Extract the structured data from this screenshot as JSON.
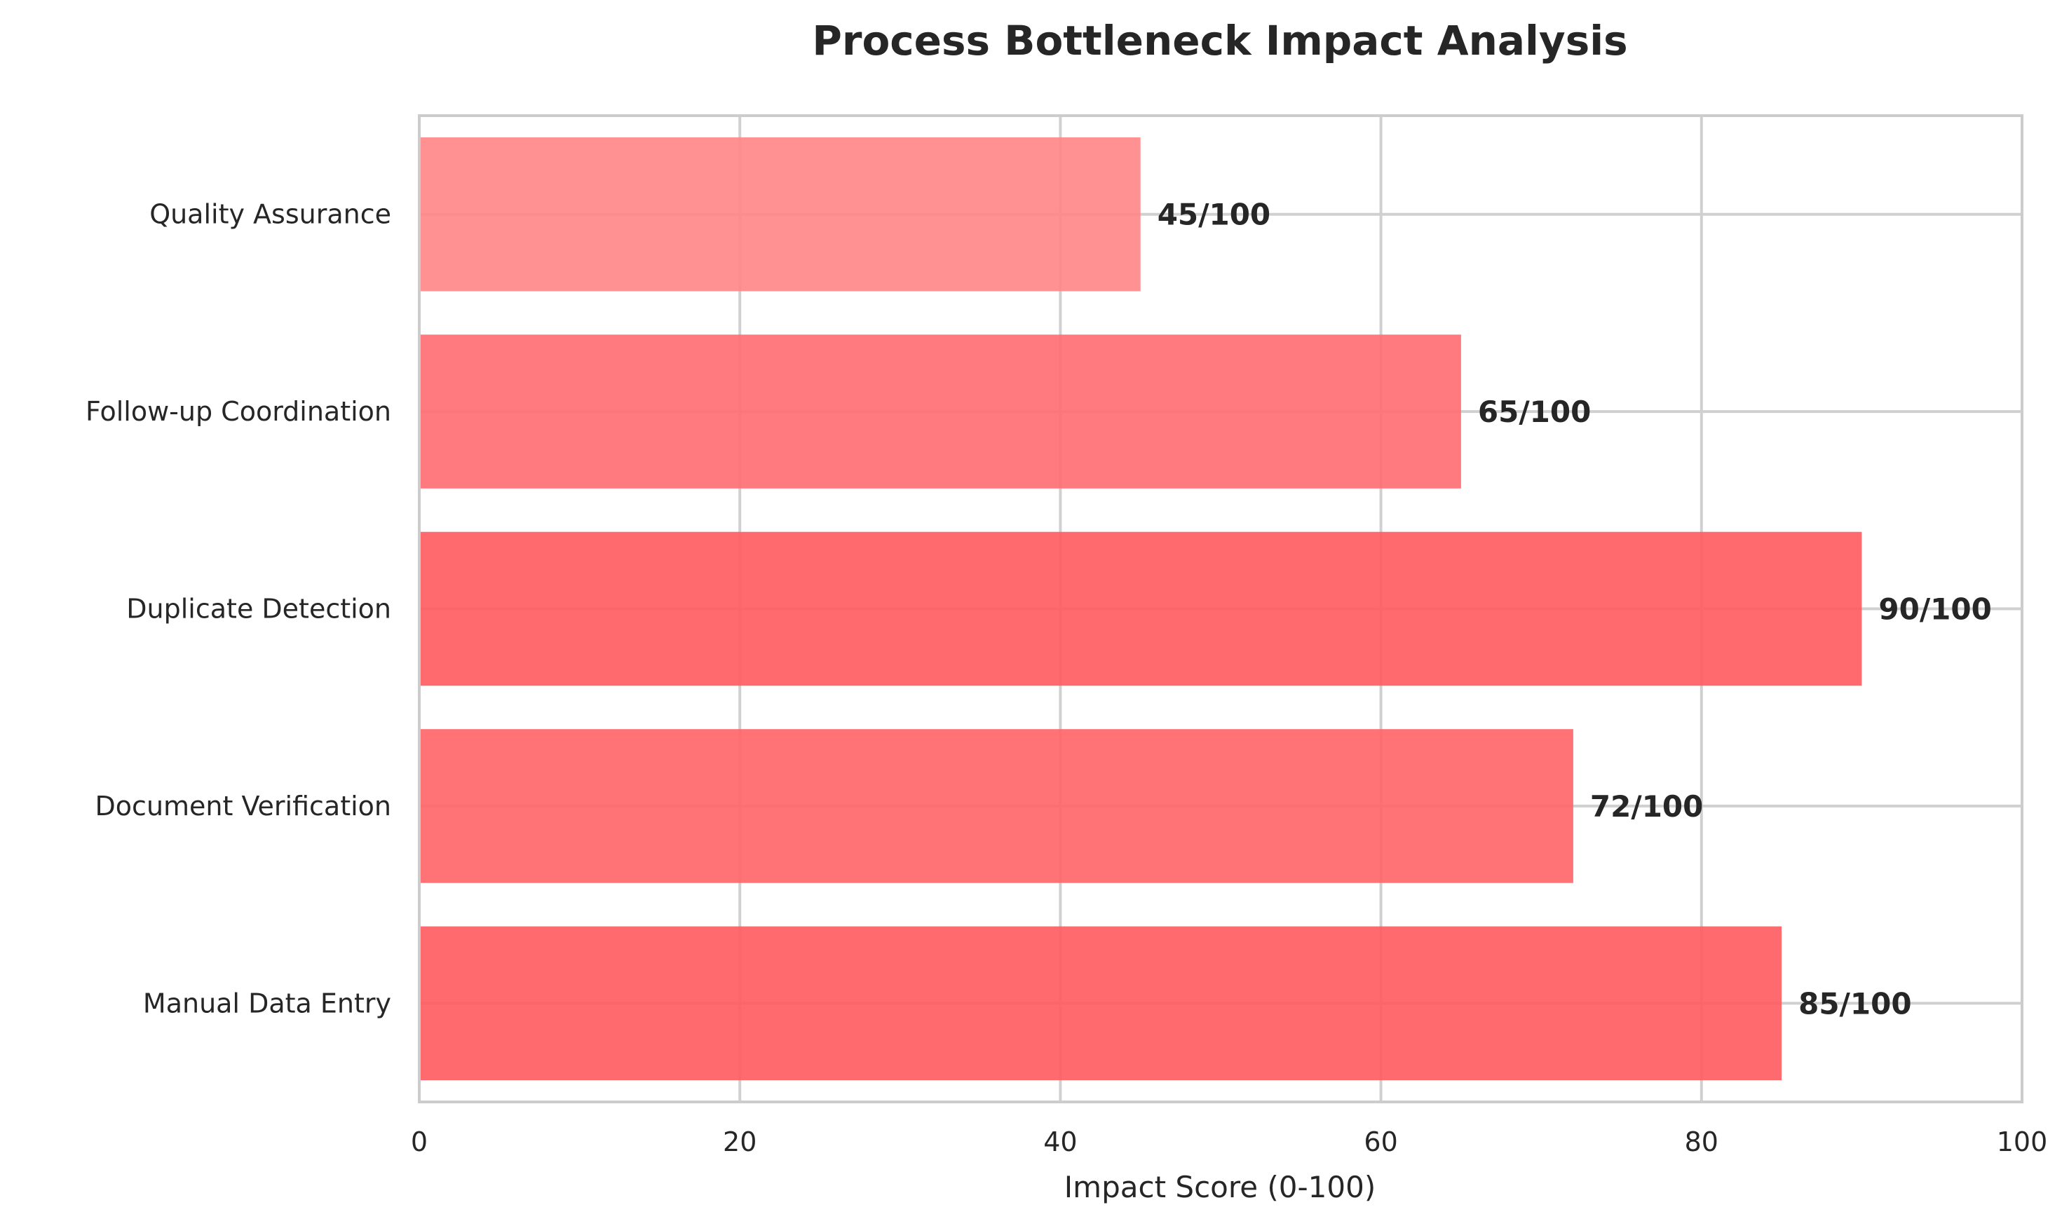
{
  "chart_data": {
    "type": "bar",
    "orientation": "horizontal",
    "title": "Process Bottleneck Impact Analysis",
    "xlabel": "Impact Score (0-100)",
    "ylabel": "",
    "xlim": [
      0,
      100
    ],
    "xticks": [
      0,
      20,
      40,
      60,
      80,
      100
    ],
    "grid": true,
    "categories": [
      "Manual Data Entry",
      "Document Verification",
      "Duplicate Detection",
      "Follow-up Coordination",
      "Quality Assurance"
    ],
    "values": [
      85,
      72,
      90,
      65,
      45
    ],
    "data_labels": [
      "85/100",
      "72/100",
      "90/100",
      "65/100",
      "45/100"
    ],
    "colors": [
      "#FF5A5F",
      "#FF6468",
      "#FF5A5F",
      "#FF6B70",
      "#FF8587"
    ],
    "bar_opacity": 0.9
  }
}
